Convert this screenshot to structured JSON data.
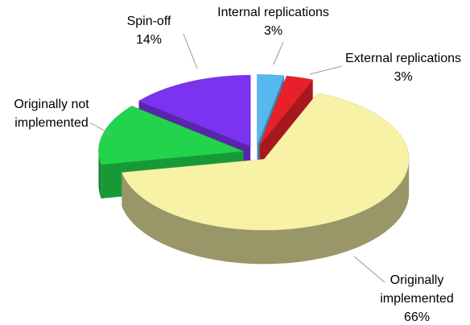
{
  "chart_data": {
    "type": "pie",
    "categories": [
      "Internal replications",
      "External replications",
      "Originally implemented",
      "Originally not implemented",
      "Spin-off"
    ],
    "values": [
      3,
      3,
      66,
      14,
      14
    ],
    "value_labels": [
      "3%",
      "3%",
      "66%",
      null,
      "14%"
    ],
    "colors": [
      "#55b8ee",
      "#e8202a",
      "#f7f2a6",
      "#22d44c",
      "#7b33f0"
    ]
  }
}
